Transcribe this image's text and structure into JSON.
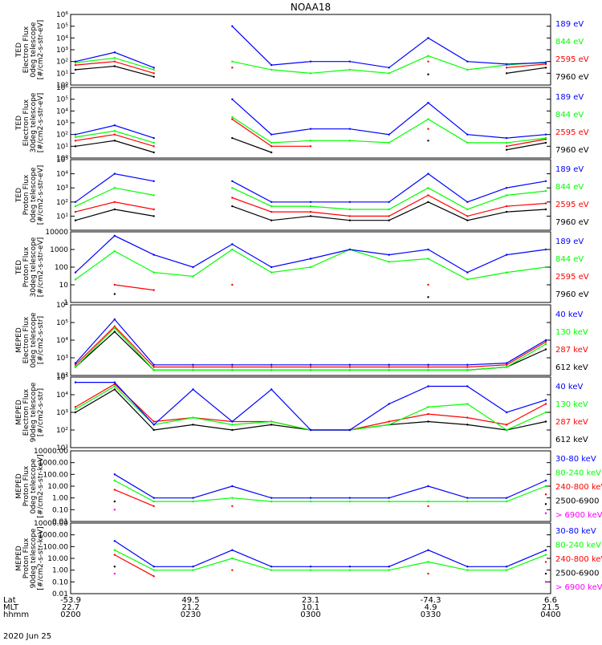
{
  "title": "NOAA18",
  "date": "2020 Jun 25",
  "colors": {
    "black": "#000000",
    "blue": "#0000ff",
    "red": "#ff0000",
    "green": "#00ff00",
    "magenta": "#ff00ff"
  },
  "orbit": {
    "labels": [
      "Lat",
      "MLT",
      "hhmm"
    ],
    "ticks": [
      {
        "lat": "-53.9",
        "mlt": "22.7",
        "time": "0200"
      },
      {
        "lat": "49.5",
        "mlt": "21.2",
        "time": "0230"
      },
      {
        "lat": "23.1",
        "mlt": "10.1",
        "time": "0300"
      },
      {
        "lat": "-74.3",
        "mlt": "4.9",
        "time": "0330"
      },
      {
        "lat": "6.6",
        "mlt": "21.5",
        "time": "0400"
      }
    ]
  },
  "chart_data": [
    {
      "type": "line",
      "panel": "TED Electron Flux 0deg telescope",
      "ylabel": [
        "TED",
        "Electron Flux",
        "0deg telescope",
        "[#/cm2-s-str-eV]"
      ],
      "yscale": "log",
      "ylim": [
        1,
        1000000
      ],
      "ytick_style": "power",
      "ytick_exponents": [
        0,
        1,
        2,
        3,
        4,
        5,
        6
      ],
      "x": [
        "0200",
        "0210",
        "0220",
        "0230",
        "0240",
        "0250",
        "0300",
        "0310",
        "0320",
        "0330",
        "0340",
        "0350",
        "0400"
      ],
      "series": [
        {
          "name": "7960 eV",
          "color": "#000000",
          "values": [
            20,
            40,
            5,
            null,
            null,
            null,
            null,
            null,
            null,
            8,
            null,
            10,
            30
          ]
        },
        {
          "name": "2595 eV",
          "color": "#ff0000",
          "values": [
            50,
            100,
            10,
            null,
            30,
            null,
            null,
            null,
            null,
            100,
            null,
            30,
            60
          ]
        },
        {
          "name": "844 eV",
          "color": "#00ff00",
          "values": [
            80,
            200,
            20,
            null,
            100,
            20,
            10,
            20,
            10,
            300,
            20,
            50,
            90
          ]
        },
        {
          "name": "189 eV",
          "color": "#0000ff",
          "values": [
            100,
            600,
            30,
            null,
            100000,
            50,
            100,
            100,
            30,
            10000,
            100,
            60,
            80
          ]
        }
      ]
    },
    {
      "type": "line",
      "panel": "TED Electron Flux 30deg telescope",
      "ylabel": [
        "TED",
        "Electron Flux",
        "30deg telescope",
        "[#/cm2-s-str-eV]"
      ],
      "yscale": "log",
      "ylim": [
        1,
        1000000
      ],
      "ytick_style": "power",
      "ytick_exponents": [
        0,
        1,
        2,
        3,
        4,
        5,
        6
      ],
      "x": [
        "0200",
        "0210",
        "0220",
        "0230",
        "0240",
        "0250",
        "0300",
        "0310",
        "0320",
        "0330",
        "0340",
        "0350",
        "0400"
      ],
      "series": [
        {
          "name": "7960 eV",
          "color": "#000000",
          "values": [
            10,
            30,
            3,
            null,
            50,
            3,
            null,
            null,
            null,
            30,
            null,
            5,
            20
          ]
        },
        {
          "name": "2595 eV",
          "color": "#ff0000",
          "values": [
            30,
            100,
            10,
            null,
            2000,
            10,
            10,
            null,
            null,
            300,
            null,
            10,
            40
          ]
        },
        {
          "name": "844 eV",
          "color": "#00ff00",
          "values": [
            60,
            200,
            20,
            null,
            3000,
            20,
            30,
            30,
            20,
            2000,
            20,
            20,
            50
          ]
        },
        {
          "name": "189 eV",
          "color": "#0000ff",
          "values": [
            100,
            600,
            50,
            null,
            100000,
            100,
            300,
            300,
            100,
            50000,
            100,
            50,
            100
          ]
        }
      ]
    },
    {
      "type": "line",
      "panel": "TED Proton Flux 0deg telescope",
      "ylabel": [
        "TED",
        "Proton Flux",
        "0deg telescope",
        "[#/cm2-s-str-eV]"
      ],
      "yscale": "log",
      "ylim": [
        1,
        100000
      ],
      "ytick_style": "power",
      "ytick_exponents": [
        1,
        2,
        3,
        4,
        5
      ],
      "x": [
        "0200",
        "0210",
        "0220",
        "0230",
        "0240",
        "0250",
        "0300",
        "0310",
        "0320",
        "0330",
        "0340",
        "0350",
        "0400"
      ],
      "series": [
        {
          "name": "7960 eV",
          "color": "#000000",
          "values": [
            5,
            30,
            10,
            null,
            50,
            5,
            10,
            5,
            5,
            100,
            5,
            20,
            30
          ]
        },
        {
          "name": "2595 eV",
          "color": "#ff0000",
          "values": [
            20,
            100,
            30,
            null,
            200,
            20,
            20,
            10,
            10,
            300,
            10,
            50,
            80
          ]
        },
        {
          "name": "844 eV",
          "color": "#00ff00",
          "values": [
            50,
            1000,
            300,
            null,
            1000,
            50,
            50,
            30,
            30,
            1000,
            30,
            300,
            600
          ]
        },
        {
          "name": "189 eV",
          "color": "#0000ff",
          "values": [
            100,
            10000,
            3000,
            null,
            3000,
            100,
            100,
            100,
            100,
            10000,
            100,
            1000,
            3000
          ]
        }
      ]
    },
    {
      "type": "line",
      "panel": "TED Proton Flux 30deg telescope",
      "ylabel": [
        "TED",
        "Proton Flux",
        "30deg telescope",
        "[#/cm2-s-str-eV]"
      ],
      "yscale": "log",
      "ylim": [
        1,
        10000
      ],
      "ytick_style": "plain",
      "ytick_values": [
        1,
        10,
        100,
        1000,
        10000
      ],
      "x": [
        "0200",
        "0210",
        "0220",
        "0230",
        "0240",
        "0250",
        "0300",
        "0310",
        "0320",
        "0330",
        "0340",
        "0350",
        "0400"
      ],
      "series": [
        {
          "name": "7960 eV",
          "color": "#000000",
          "values": [
            null,
            3,
            null,
            null,
            null,
            null,
            null,
            null,
            null,
            2,
            null,
            null,
            null
          ]
        },
        {
          "name": "2595 eV",
          "color": "#ff0000",
          "values": [
            null,
            10,
            5,
            null,
            10,
            null,
            null,
            null,
            null,
            10,
            null,
            null,
            null
          ]
        },
        {
          "name": "844 eV",
          "color": "#00ff00",
          "values": [
            20,
            800,
            50,
            30,
            1000,
            50,
            100,
            1000,
            200,
            300,
            20,
            50,
            100
          ]
        },
        {
          "name": "189 eV",
          "color": "#0000ff",
          "values": [
            50,
            6000,
            500,
            100,
            2000,
            100,
            300,
            1000,
            500,
            1000,
            50,
            500,
            1000
          ]
        }
      ]
    },
    {
      "type": "line",
      "panel": "MEPED Electron Flux 0deg telescope",
      "ylabel": [
        "MEPED",
        "Electron Flux",
        "0deg telescope",
        "[#/cm2-s-str]"
      ],
      "yscale": "log",
      "ylim": [
        100,
        1000000
      ],
      "ytick_style": "power",
      "ytick_exponents": [
        2,
        3,
        4,
        5,
        6
      ],
      "x": [
        "0200",
        "0210",
        "0220",
        "0230",
        "0240",
        "0250",
        "0300",
        "0310",
        "0320",
        "0330",
        "0340",
        "0350",
        "0400"
      ],
      "series": [
        {
          "name": "612 keV",
          "color": "#000000",
          "values": [
            300,
            30000,
            200,
            200,
            200,
            200,
            200,
            200,
            200,
            200,
            200,
            300,
            3000
          ]
        },
        {
          "name": "287 keV",
          "color": "#ff0000",
          "values": [
            400,
            60000,
            300,
            300,
            300,
            300,
            300,
            300,
            300,
            300,
            300,
            400,
            8000
          ]
        },
        {
          "name": "130 keV",
          "color": "#00ff00",
          "values": [
            300,
            50000,
            200,
            200,
            200,
            200,
            200,
            200,
            200,
            200,
            200,
            300,
            6000
          ]
        },
        {
          "name": "40 keV",
          "color": "#0000ff",
          "values": [
            500,
            150000,
            400,
            400,
            400,
            400,
            400,
            400,
            400,
            400,
            400,
            500,
            10000
          ]
        }
      ]
    },
    {
      "type": "line",
      "panel": "MEPED Electron Flux 90deg telescope",
      "ylabel": [
        "MEPED",
        "Electron Flux",
        "90deg telescope",
        "[#/cm2-s-str]"
      ],
      "yscale": "log",
      "ylim": [
        10,
        100000
      ],
      "ytick_style": "power",
      "ytick_exponents": [
        1,
        2,
        3,
        4,
        5
      ],
      "x": [
        "0200",
        "0210",
        "0220",
        "0230",
        "0240",
        "0250",
        "0300",
        "0310",
        "0320",
        "0330",
        "0340",
        "0350",
        "0400"
      ],
      "series": [
        {
          "name": "612 keV",
          "color": "#000000",
          "values": [
            1000,
            20000,
            100,
            200,
            100,
            200,
            100,
            100,
            200,
            300,
            200,
            100,
            300
          ]
        },
        {
          "name": "287 keV",
          "color": "#ff0000",
          "values": [
            2000,
            40000,
            300,
            500,
            300,
            300,
            100,
            100,
            300,
            800,
            500,
            200,
            3000
          ]
        },
        {
          "name": "130 keV",
          "color": "#00ff00",
          "values": [
            1500,
            30000,
            200,
            500,
            200,
            300,
            100,
            100,
            200,
            2000,
            3000,
            100,
            1000
          ]
        },
        {
          "name": "40 keV",
          "color": "#0000ff",
          "values": [
            50000,
            50000,
            200,
            20000,
            300,
            20000,
            100,
            100,
            3000,
            30000,
            30000,
            1000,
            5000
          ]
        }
      ]
    },
    {
      "type": "line",
      "panel": "MEPED Proton Flux 0deg telescope",
      "ylabel": [
        "MEPED",
        "Proton Flux",
        "0deg telescope",
        "[#/cm2-s-str-keV]"
      ],
      "yscale": "log",
      "ylim": [
        0.01,
        10000
      ],
      "ytick_style": "decimal",
      "ytick_values": [
        0.01,
        0.1,
        1,
        10,
        100,
        1000,
        10000
      ],
      "x": [
        "0200",
        "0210",
        "0220",
        "0230",
        "0240",
        "0250",
        "0300",
        "0310",
        "0320",
        "0330",
        "0340",
        "0350",
        "0400"
      ],
      "series": [
        {
          "name": "> 6900 keV",
          "color": "#ff00ff",
          "values": [
            null,
            0.1,
            null,
            null,
            null,
            null,
            null,
            null,
            null,
            null,
            null,
            null,
            0.05
          ]
        },
        {
          "name": "2500-6900",
          "color": "#000000",
          "values": [
            null,
            0.5,
            null,
            null,
            null,
            null,
            null,
            null,
            null,
            null,
            null,
            null,
            0.3
          ]
        },
        {
          "name": "240-800 keV",
          "color": "#ff0000",
          "values": [
            null,
            5,
            0.2,
            null,
            0.2,
            null,
            null,
            null,
            null,
            0.2,
            null,
            null,
            2
          ]
        },
        {
          "name": "80-240 keV",
          "color": "#00ff00",
          "values": [
            null,
            30,
            0.5,
            0.5,
            1,
            0.5,
            0.5,
            0.5,
            0.5,
            0.5,
            0.5,
            0.5,
            10
          ]
        },
        {
          "name": "30-80 keV",
          "color": "#0000ff",
          "values": [
            null,
            100,
            1,
            1,
            10,
            1,
            1,
            1,
            1,
            10,
            1,
            1,
            30
          ]
        }
      ]
    },
    {
      "type": "line",
      "panel": "MEPED Proton Flux 90deg telescope",
      "ylabel": [
        "MEPED",
        "Proton Flux",
        "90deg telescope",
        "[#/cm2-s-str-keV]"
      ],
      "yscale": "log",
      "ylim": [
        0.01,
        10000
      ],
      "ytick_style": "decimal",
      "ytick_values": [
        0.01,
        0.1,
        1,
        10,
        100,
        1000,
        10000
      ],
      "x": [
        "0200",
        "0210",
        "0220",
        "0230",
        "0240",
        "0250",
        "0300",
        "0310",
        "0320",
        "0330",
        "0340",
        "0350",
        "0400"
      ],
      "series": [
        {
          "name": "> 6900 keV",
          "color": "#ff00ff",
          "values": [
            null,
            0.5,
            null,
            null,
            null,
            null,
            null,
            null,
            null,
            null,
            null,
            null,
            0.1
          ]
        },
        {
          "name": "2500-6900",
          "color": "#000000",
          "values": [
            null,
            2,
            null,
            null,
            null,
            null,
            null,
            null,
            null,
            null,
            null,
            null,
            0.5
          ]
        },
        {
          "name": "240-800 keV",
          "color": "#ff0000",
          "values": [
            null,
            20,
            0.3,
            null,
            1,
            null,
            null,
            null,
            null,
            0.5,
            null,
            null,
            5
          ]
        },
        {
          "name": "80-240 keV",
          "color": "#00ff00",
          "values": [
            null,
            50,
            1,
            1,
            10,
            1,
            1,
            1,
            1,
            5,
            1,
            1,
            20
          ]
        },
        {
          "name": "30-80 keV",
          "color": "#0000ff",
          "values": [
            null,
            300,
            2,
            2,
            50,
            2,
            2,
            2,
            2,
            50,
            2,
            2,
            50
          ]
        }
      ]
    }
  ]
}
